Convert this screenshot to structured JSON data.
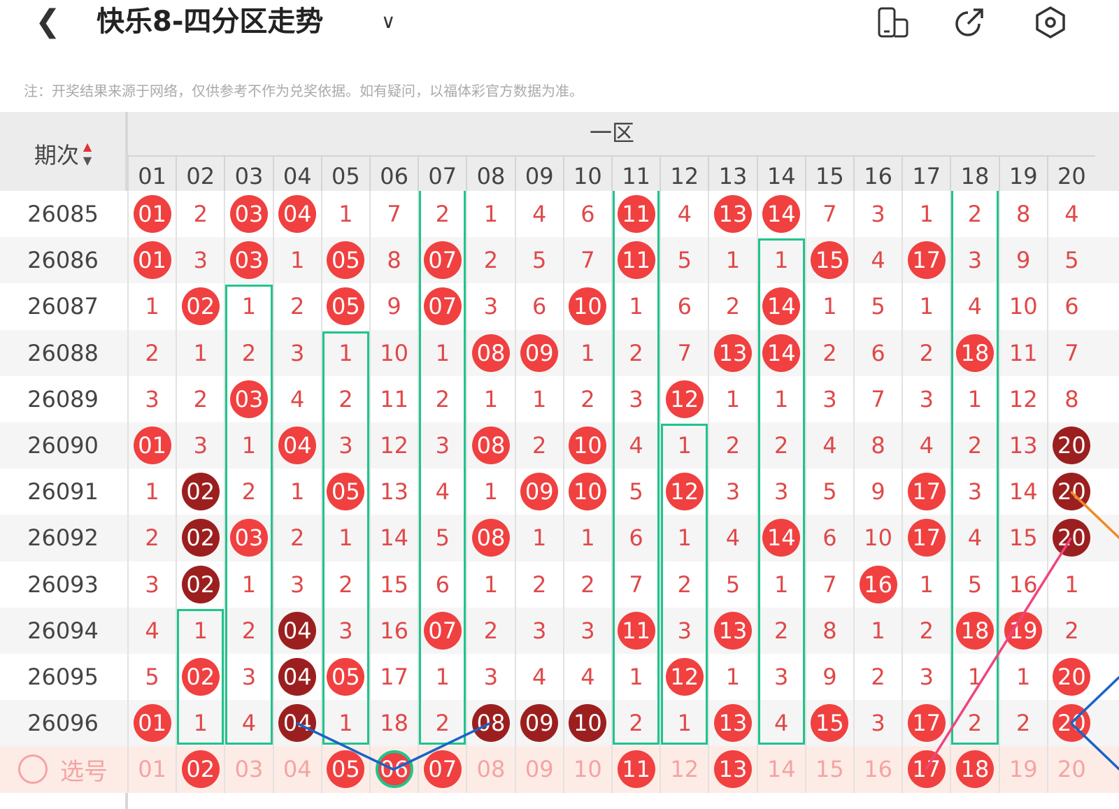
{
  "header": {
    "title": "快乐8-四分区走势",
    "back_icon": "chevron-left-icon",
    "dropdown_icon": "chevron-down-icon",
    "icons": [
      "split-screen-icon",
      "share-icon",
      "settings-icon"
    ]
  },
  "note": "注：开奖结果来源于网络，仅供参考不作为兑奖依据。如有疑问，以福体彩官方数据为准。",
  "table": {
    "period_header": "期次",
    "zone_label": "一区",
    "columns": [
      "01",
      "02",
      "03",
      "04",
      "05",
      "06",
      "07",
      "08",
      "09",
      "10",
      "11",
      "12",
      "13",
      "14",
      "15",
      "16",
      "17",
      "18",
      "19",
      "20"
    ],
    "legend_kinds": {
      "-": "miss count",
      "r": "drawn (red ball)",
      "d": "drawn repeat (dark ball)"
    },
    "colors": {
      "ball": "#f04040",
      "ball_dark": "#9c1f1f",
      "box": "#1fc48d",
      "text": "#e04848"
    },
    "rows": [
      {
        "period": "26085",
        "cells": [
          "01",
          "2",
          "03",
          "04",
          "1",
          "7",
          "2",
          "1",
          "4",
          "6",
          "11",
          "4",
          "13",
          "14",
          "7",
          "3",
          "1",
          "2",
          "8",
          "4"
        ],
        "kind": "r-rr------r-rr------"
      },
      {
        "period": "26086",
        "cells": [
          "01",
          "3",
          "03",
          "1",
          "05",
          "8",
          "07",
          "2",
          "5",
          "7",
          "11",
          "5",
          "1",
          "1",
          "15",
          "4",
          "17",
          "3",
          "9",
          "5"
        ],
        "kind": "r-r-r-r---r---r-r---"
      },
      {
        "period": "26087",
        "cells": [
          "1",
          "02",
          "1",
          "2",
          "05",
          "9",
          "07",
          "3",
          "6",
          "10",
          "1",
          "6",
          "2",
          "14",
          "1",
          "5",
          "1",
          "4",
          "10",
          "6"
        ],
        "kind": "-r--r-r--r---r------"
      },
      {
        "period": "26088",
        "cells": [
          "2",
          "1",
          "2",
          "3",
          "1",
          "10",
          "1",
          "08",
          "09",
          "1",
          "2",
          "7",
          "13",
          "14",
          "2",
          "6",
          "2",
          "18",
          "11",
          "7"
        ],
        "kind": "-------rr---rr---r--"
      },
      {
        "period": "26089",
        "cells": [
          "3",
          "2",
          "03",
          "4",
          "2",
          "11",
          "2",
          "1",
          "1",
          "2",
          "3",
          "12",
          "1",
          "1",
          "3",
          "7",
          "3",
          "1",
          "12",
          "8"
        ],
        "kind": "--r--------r--------"
      },
      {
        "period": "26090",
        "cells": [
          "01",
          "3",
          "1",
          "04",
          "3",
          "12",
          "3",
          "08",
          "2",
          "10",
          "4",
          "1",
          "2",
          "2",
          "4",
          "8",
          "4",
          "2",
          "13",
          "20"
        ],
        "kind": "r--r---r-r---------d"
      },
      {
        "period": "26091",
        "cells": [
          "1",
          "02",
          "2",
          "1",
          "05",
          "13",
          "4",
          "1",
          "09",
          "10",
          "5",
          "12",
          "3",
          "3",
          "5",
          "9",
          "17",
          "3",
          "14",
          "20"
        ],
        "kind": "-d--r---rr-r----r--d"
      },
      {
        "period": "26092",
        "cells": [
          "2",
          "02",
          "03",
          "2",
          "1",
          "14",
          "5",
          "08",
          "1",
          "1",
          "6",
          "1",
          "4",
          "14",
          "6",
          "10",
          "17",
          "4",
          "15",
          "20"
        ],
        "kind": "-dr----r-----r--r--d"
      },
      {
        "period": "26093",
        "cells": [
          "3",
          "02",
          "1",
          "3",
          "2",
          "15",
          "6",
          "1",
          "2",
          "2",
          "7",
          "2",
          "5",
          "1",
          "7",
          "16",
          "1",
          "5",
          "16",
          "1"
        ],
        "kind": "-d-------------r----"
      },
      {
        "period": "26094",
        "cells": [
          "4",
          "1",
          "2",
          "04",
          "3",
          "16",
          "07",
          "2",
          "3",
          "3",
          "11",
          "3",
          "13",
          "2",
          "8",
          "1",
          "2",
          "18",
          "19",
          "2"
        ],
        "kind": "---d--r---r-r----rr-"
      },
      {
        "period": "26095",
        "cells": [
          "5",
          "02",
          "3",
          "04",
          "05",
          "17",
          "1",
          "3",
          "4",
          "4",
          "1",
          "12",
          "1",
          "3",
          "9",
          "2",
          "3",
          "1",
          "1",
          "20"
        ],
        "kind": "-r-dr------r-------r"
      },
      {
        "period": "26096",
        "cells": [
          "01",
          "1",
          "4",
          "04",
          "1",
          "18",
          "2",
          "08",
          "09",
          "10",
          "2",
          "1",
          "13",
          "4",
          "15",
          "3",
          "17",
          "2",
          "2",
          "20"
        ],
        "kind": "r--d---ddd--r-r-r--r"
      }
    ],
    "select_row": {
      "label": "选号",
      "cells": [
        "01",
        "02",
        "03",
        "04",
        "05",
        "06",
        "07",
        "08",
        "09",
        "10",
        "11",
        "12",
        "13",
        "14",
        "15",
        "16",
        "17",
        "18",
        "19",
        "20"
      ],
      "kind": "-r--rrr---r-r---rr--",
      "ringed": "06"
    },
    "boxes": [
      {
        "col": "02",
        "from": "26094",
        "to": "26096"
      },
      {
        "col": "03",
        "from": "26087",
        "to": "26096"
      },
      {
        "col": "05",
        "from": "26088",
        "to": "26096"
      },
      {
        "col": "07",
        "from": "26085",
        "to": "26096"
      },
      {
        "col": "11",
        "from": "26085",
        "to": "26096"
      },
      {
        "col": "12",
        "from": "26090",
        "to": "26096"
      },
      {
        "col": "14",
        "from": "26086",
        "to": "26096"
      },
      {
        "col": "18",
        "from": "26085",
        "to": "26096"
      }
    ],
    "lines": [
      {
        "color": "#1a63c6",
        "points": [
          [
            "04",
            "26096"
          ],
          [
            "06",
            "select"
          ],
          [
            "08",
            "26096"
          ]
        ]
      },
      {
        "color": "#f0457e",
        "points": [
          [
            "17",
            "select"
          ],
          [
            "20",
            "26092"
          ]
        ]
      },
      {
        "color": "#f08a24",
        "points": [
          [
            "20",
            "26091"
          ],
          [
            "21",
            "26092"
          ]
        ]
      },
      {
        "color": "#1a63c6",
        "points": [
          [
            "20",
            "26096"
          ],
          [
            "21",
            "26095"
          ]
        ]
      },
      {
        "color": "#1a63c6",
        "points": [
          [
            "20",
            "26096"
          ],
          [
            "21",
            "select"
          ]
        ]
      }
    ]
  }
}
